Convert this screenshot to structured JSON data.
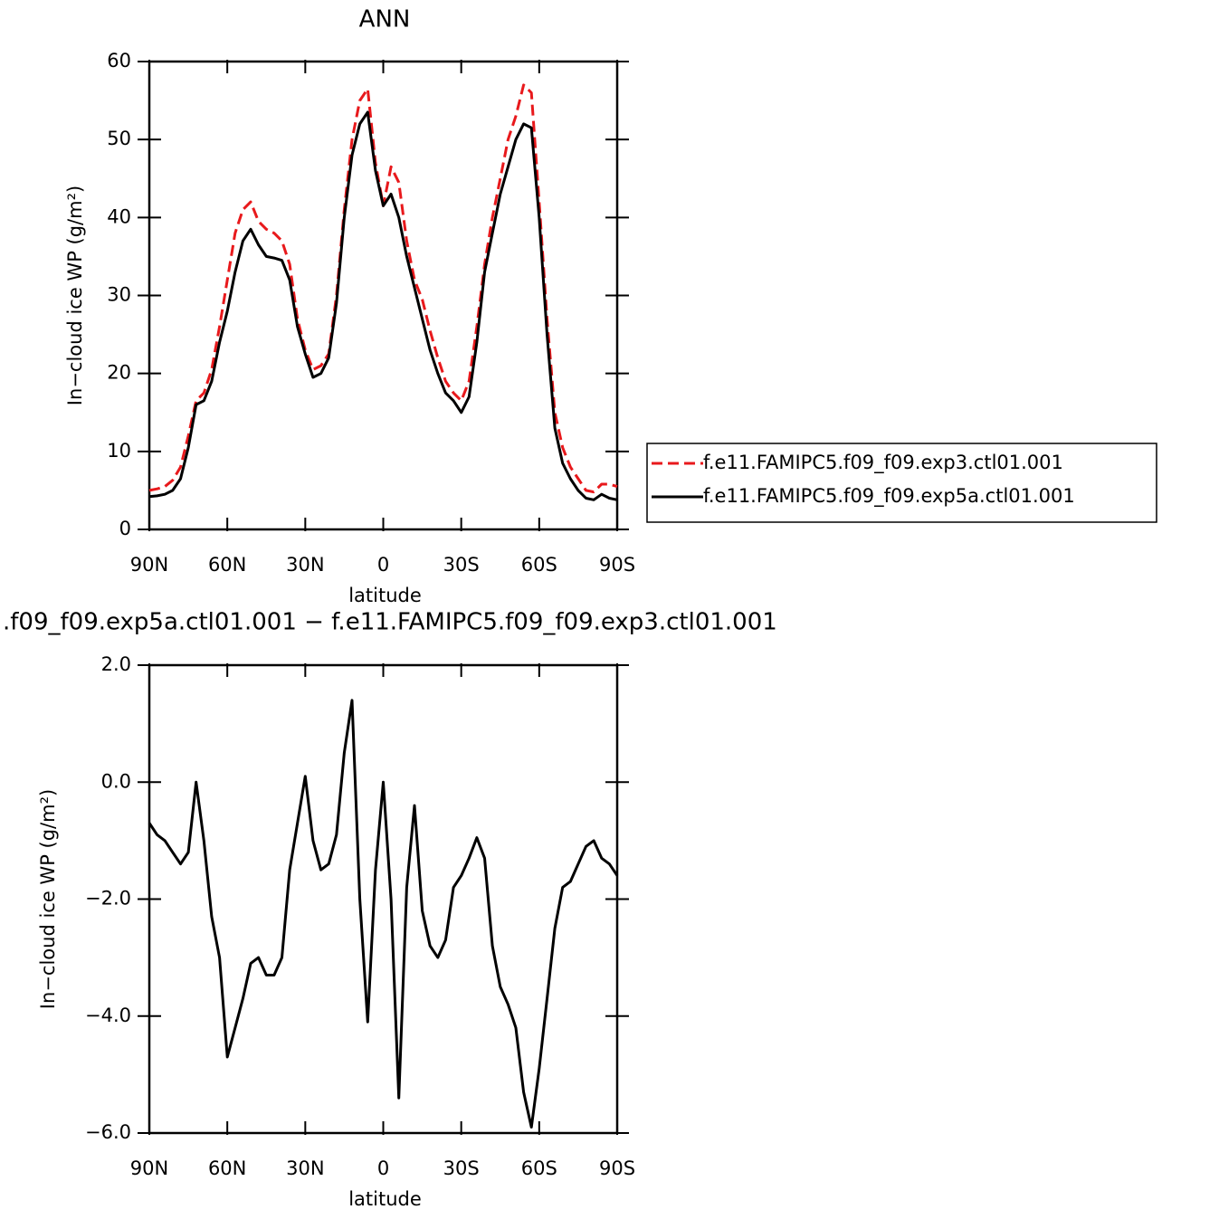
{
  "chart_data": [
    {
      "type": "line",
      "title": "ANN",
      "xlabel": "latitude",
      "ylabel": "In−cloud ice WP (g/m²)",
      "x": [
        90,
        87,
        84,
        81,
        78,
        75,
        72,
        69,
        66,
        63,
        60,
        57,
        54,
        51,
        48,
        45,
        42,
        39,
        36,
        33,
        30,
        27,
        24,
        21,
        18,
        15,
        12,
        9,
        6,
        3,
        0,
        -3,
        -6,
        -9,
        -12,
        -15,
        -18,
        -21,
        -24,
        -27,
        -30,
        -33,
        -36,
        -39,
        -42,
        -45,
        -48,
        -51,
        -54,
        -57,
        -60,
        -63,
        -66,
        -69,
        -72,
        -75,
        -78,
        -81,
        -84,
        -87,
        -90
      ],
      "xlim": [
        90,
        -90
      ],
      "xticks": [
        {
          "value": 90,
          "label": "90N"
        },
        {
          "value": 60,
          "label": "60N"
        },
        {
          "value": 30,
          "label": "30N"
        },
        0,
        {
          "value": -30,
          "label": "30S"
        },
        {
          "value": -60,
          "label": "60S"
        },
        {
          "value": -90,
          "label": "90S"
        }
      ],
      "ylim": [
        0,
        60
      ],
      "yticks": [
        0,
        10,
        20,
        30,
        40,
        50,
        60
      ],
      "series": [
        {
          "name": "f.e11.FAMIPC5.f09_f09.exp3.ctl01.001",
          "color": "#e8191c",
          "line_style": "dashed",
          "values": [
            5,
            5.2,
            5.5,
            6.3,
            8,
            12,
            16.5,
            17.5,
            20.5,
            26,
            32,
            38,
            41,
            42,
            39.5,
            38.5,
            38,
            37,
            34,
            27,
            23,
            20.5,
            21,
            22.5,
            30,
            41,
            50,
            55,
            56.5,
            47,
            41.5,
            46.5,
            44.5,
            37,
            32,
            29.5,
            25.5,
            22,
            19,
            17.5,
            16.5,
            19,
            26,
            34,
            40,
            45,
            50,
            53,
            57,
            56,
            42,
            27,
            15,
            10.5,
            8,
            6.5,
            5,
            4.8,
            5.8,
            5.8,
            5.5
          ]
        },
        {
          "name": "f.e11.FAMIPC5.f09_f09.exp5a.ctl01.001",
          "color": "#000000",
          "line_style": "solid",
          "values": [
            4.2,
            4.3,
            4.5,
            5,
            6.5,
            10.5,
            16,
            16.5,
            19,
            24,
            28,
            33,
            37,
            38.5,
            36.5,
            35,
            34.8,
            34.5,
            32,
            26,
            22.5,
            19.5,
            20,
            22,
            29,
            40,
            48,
            52,
            53.5,
            46,
            41.5,
            43,
            40,
            35,
            31,
            27,
            23,
            20,
            17.5,
            16.5,
            15,
            17,
            24,
            33,
            38,
            43,
            46.5,
            50,
            52,
            51.5,
            40,
            25,
            13,
            8.5,
            6.5,
            5,
            4,
            3.8,
            4.5,
            4,
            3.8
          ]
        }
      ]
    },
    {
      "type": "line",
      "title": ".f09_f09.exp5a.ctl01.001 − f.e11.FAMIPC5.f09_f09.exp3.ctl01.001",
      "xlabel": "latitude",
      "ylabel": "In−cloud ice WP (g/m²)",
      "x": [
        90,
        87,
        84,
        81,
        78,
        75,
        72,
        69,
        66,
        63,
        60,
        57,
        54,
        51,
        48,
        45,
        42,
        39,
        36,
        33,
        30,
        27,
        24,
        21,
        18,
        15,
        12,
        9,
        6,
        3,
        0,
        -3,
        -6,
        -9,
        -12,
        -15,
        -18,
        -21,
        -24,
        -27,
        -30,
        -33,
        -36,
        -39,
        -42,
        -45,
        -48,
        -51,
        -54,
        -57,
        -60,
        -63,
        -66,
        -69,
        -72,
        -75,
        -78,
        -81,
        -84,
        -87,
        -90
      ],
      "xlim": [
        90,
        -90
      ],
      "xticks": [
        {
          "value": 90,
          "label": "90N"
        },
        {
          "value": 60,
          "label": "60N"
        },
        {
          "value": 30,
          "label": "30N"
        },
        0,
        {
          "value": -30,
          "label": "30S"
        },
        {
          "value": -60,
          "label": "60S"
        },
        {
          "value": -90,
          "label": "90S"
        }
      ],
      "ylim": [
        -6,
        2
      ],
      "yticks": [
        {
          "value": 2,
          "label": "2.0"
        },
        {
          "value": 0,
          "label": "0.0"
        },
        {
          "value": -2,
          "label": "−2.0"
        },
        {
          "value": -4,
          "label": "−4.0"
        },
        {
          "value": -6,
          "label": "−6.0"
        }
      ],
      "color": "#000000",
      "values": [
        -0.7,
        -0.9,
        -1.0,
        -1.2,
        -1.4,
        -1.2,
        0.0,
        -1.0,
        -2.3,
        -3.0,
        -4.7,
        -4.2,
        -3.7,
        -3.1,
        -3.0,
        -3.3,
        -3.3,
        -3.0,
        -1.5,
        -0.7,
        0.1,
        -1.0,
        -1.5,
        -1.4,
        -0.9,
        0.5,
        1.4,
        -2.0,
        -4.1,
        -1.5,
        0.0,
        -2.0,
        -5.4,
        -1.8,
        -0.4,
        -2.2,
        -2.8,
        -3.0,
        -2.7,
        -1.8,
        -1.6,
        -1.3,
        -0.95,
        -1.3,
        -2.8,
        -3.5,
        -3.8,
        -4.2,
        -5.3,
        -5.9,
        -4.9,
        -3.7,
        -2.5,
        -1.8,
        -1.7,
        -1.4,
        -1.1,
        -1.0,
        -1.3,
        -1.4,
        -1.6
      ]
    }
  ]
}
